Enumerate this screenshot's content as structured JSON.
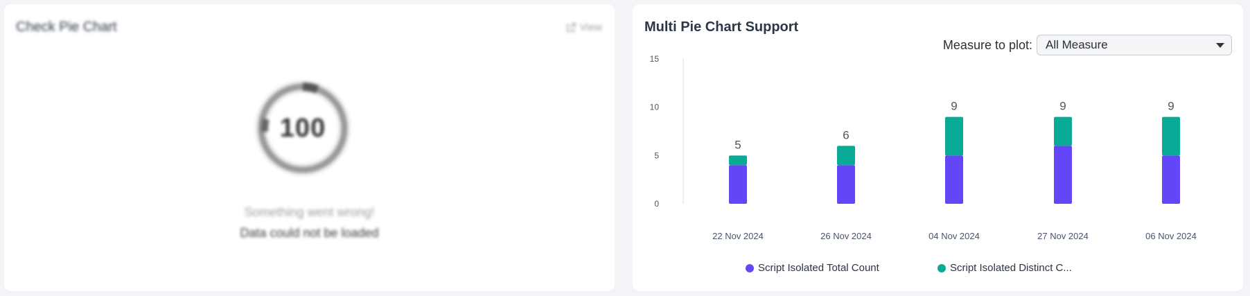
{
  "left_card": {
    "title": "Check Pie Chart",
    "view_label": "View",
    "donut_value": "100",
    "error_title": "Something went wrong!",
    "error_message": "Data could not be loaded"
  },
  "right_card": {
    "title": "Multi Pie Chart Support",
    "measure_label": "Measure to plot:",
    "measure_value": "All Measure"
  },
  "colors": {
    "series1": "#6446f9",
    "series2": "#0aab96",
    "title": "#2c3848"
  },
  "chart_data": {
    "type": "bar",
    "stacked": true,
    "categories": [
      "22 Nov 2024",
      "26 Nov 2024",
      "04 Nov 2024",
      "27 Nov 2024",
      "06 Nov 2024"
    ],
    "series": [
      {
        "name": "Script Isolated Total Count",
        "values": [
          4,
          4,
          5,
          6,
          5
        ]
      },
      {
        "name": "Script Isolated Distinct C...",
        "values": [
          1,
          2,
          4,
          3,
          4
        ]
      }
    ],
    "totals": [
      "5",
      "6",
      "9",
      "9",
      "9"
    ],
    "ylim": [
      0,
      15
    ],
    "yticks": [
      "0",
      "5",
      "10",
      "15"
    ],
    "legend_position": "bottom",
    "grid": false
  }
}
